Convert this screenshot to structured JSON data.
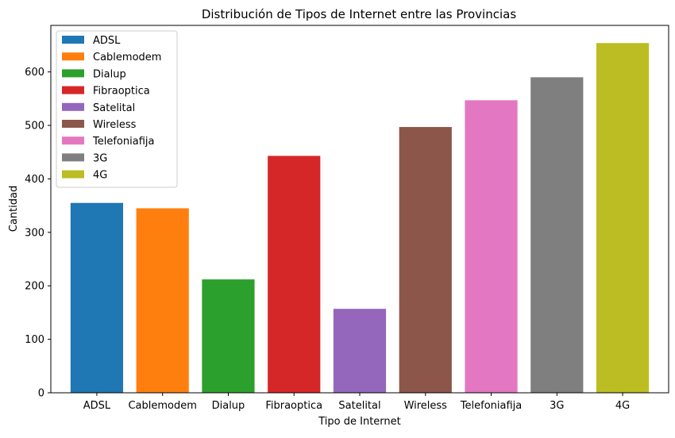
{
  "chart_data": {
    "type": "bar",
    "title": "Distribución de Tipos de Internet entre las Provincias",
    "xlabel": "Tipo de Internet",
    "ylabel": "Cantidad",
    "categories": [
      "ADSL",
      "Cablemodem",
      "Dialup",
      "Fibraoptica",
      "Satelital",
      "Wireless",
      "Telefoniafija",
      "3G",
      "4G"
    ],
    "values": [
      355,
      345,
      212,
      443,
      157,
      497,
      547,
      590,
      654
    ],
    "colors": [
      "#1f77b4",
      "#ff7f0e",
      "#2ca02c",
      "#d62728",
      "#9467bd",
      "#8c564b",
      "#e377c2",
      "#7f7f7f",
      "#bcbd22"
    ],
    "ylim": [
      0,
      687
    ],
    "yticks": [
      0,
      100,
      200,
      300,
      400,
      500,
      600
    ],
    "grid": false,
    "legend": {
      "placement": "top-left",
      "entries": [
        "ADSL",
        "Cablemodem",
        "Dialup",
        "Fibraoptica",
        "Satelital",
        "Wireless",
        "Telefoniafija",
        "3G",
        "4G"
      ]
    }
  }
}
